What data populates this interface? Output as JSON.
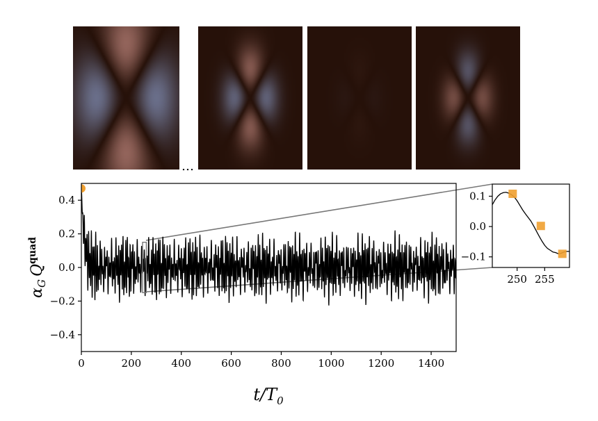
{
  "chart_data": [
    {
      "type": "line",
      "panel": "main",
      "xlabel": "t/T",
      "xlabel_sub": "0",
      "ylabel": "α",
      "ylabel_sub": "G",
      "ylabel_mid": "Q",
      "ylabel_sup": "quad",
      "xlim": [
        0,
        1500
      ],
      "ylim": [
        -0.5,
        0.5
      ],
      "xticks": [
        0,
        200,
        400,
        600,
        800,
        1000,
        1200,
        1400
      ],
      "xtick_labels": [
        "0",
        "200",
        "400",
        "600",
        "800",
        "1000",
        "1200",
        "1400"
      ],
      "yticks": [
        0.4,
        0.2,
        0.0,
        -0.2,
        -0.4
      ],
      "ytick_labels": [
        "0.4",
        "0.2",
        "0.0",
        "−0.2",
        "−0.4"
      ],
      "grid": false,
      "series_color": "#000000",
      "highlight_point": {
        "x": 0,
        "y": 0.47,
        "color": "#f0a030"
      },
      "zoom_box": {
        "x": [
          245,
          260
        ],
        "y": [
          -0.15,
          0.15
        ]
      },
      "signal": {
        "initial": 0.47,
        "relax_end": 60,
        "components": [
          {
            "amplitude": 0.1,
            "period": 5.7
          },
          {
            "amplitude": 0.06,
            "period": 9.3
          },
          {
            "amplitude": 0.04,
            "period": 21.0
          }
        ]
      }
    },
    {
      "type": "line",
      "panel": "inset",
      "xlim": [
        245.5,
        259.5
      ],
      "ylim": [
        -0.135,
        0.14
      ],
      "xticks": [
        250,
        255
      ],
      "xtick_labels": [
        "250",
        "255"
      ],
      "yticks": [
        0.1,
        0.0,
        -0.1
      ],
      "ytick_labels": [
        "0.1",
        "0.0",
        "−0.1"
      ],
      "x": [
        245.5,
        246.0,
        246.5,
        247.0,
        247.5,
        248.0,
        248.5,
        249.0,
        249.5,
        250.0,
        250.5,
        251.0,
        251.5,
        252.0,
        252.5,
        253.0,
        253.5,
        254.0,
        254.5,
        255.0,
        255.5,
        256.0,
        256.5,
        257.0,
        257.5,
        258.0,
        258.5,
        259.0,
        259.5
      ],
      "y": [
        0.072,
        0.088,
        0.1,
        0.108,
        0.112,
        0.113,
        0.11,
        0.105,
        0.097,
        0.085,
        0.07,
        0.055,
        0.042,
        0.03,
        0.018,
        0.002,
        -0.015,
        -0.032,
        -0.048,
        -0.062,
        -0.072,
        -0.078,
        -0.084,
        -0.086,
        -0.09,
        -0.088,
        -0.084,
        -0.082,
        -0.082
      ],
      "markers": {
        "x": [
          249.2,
          254.3,
          258.2
        ],
        "y": [
          0.108,
          0.002,
          -0.09
        ],
        "color": "#f0a030"
      }
    }
  ],
  "snapshots": {
    "count": 4,
    "ellipsis": "…",
    "amplitudes": [
      1.0,
      0.85,
      0.06,
      -0.7
    ],
    "scales": [
      1.0,
      0.55,
      0.5,
      0.5
    ],
    "colors": {
      "positive": "#f6b0a6",
      "negative": "#a8c4ff",
      "background": "#261109"
    }
  }
}
